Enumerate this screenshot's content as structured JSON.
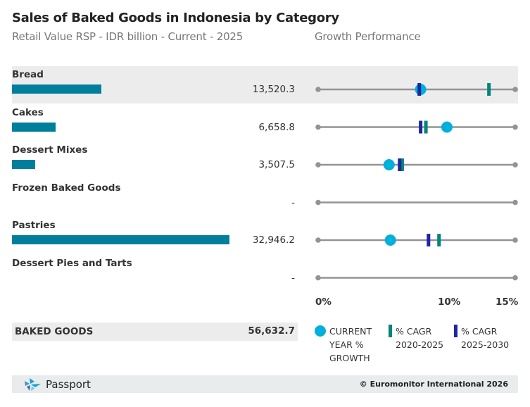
{
  "header": {
    "title": "Sales of Baked Goods in Indonesia by Category",
    "subtitle": "Retail Value RSP - IDR billion - Current - 2025",
    "growth_title": "Growth Performance"
  },
  "chart_data": {
    "type": "bar",
    "title": "Sales of Baked Goods in Indonesia by Category",
    "subtitle": "Retail Value RSP - IDR billion - Current - 2025",
    "unit": "IDR billion",
    "categories": [
      "Bread",
      "Cakes",
      "Dessert Mixes",
      "Frozen Baked Goods",
      "Pastries",
      "Dessert Pies and Tarts"
    ],
    "values": [
      13520.3,
      6658.8,
      3507.5,
      null,
      32946.2,
      null
    ],
    "value_labels": [
      "13,520.3",
      "6,658.8",
      "3,507.5",
      "-",
      "32,946.2",
      "-"
    ],
    "total": {
      "label": "BAKED GOODS",
      "value": 56632.7,
      "value_label": "56,632.7"
    },
    "growth": {
      "title": "Growth Performance",
      "xlim": [
        0,
        15
      ],
      "ticks": [
        0,
        10,
        15
      ],
      "tick_labels": [
        "0%",
        "10%",
        "15%"
      ],
      "series": [
        {
          "name": "CURRENT YEAR % GROWTH",
          "marker": "circle",
          "color": "#00b0dc",
          "values": [
            7.8,
            9.8,
            5.4,
            null,
            5.5,
            null
          ]
        },
        {
          "name": "% CAGR 2020-2025",
          "marker": "bar",
          "color": "#008578",
          "values": [
            13.0,
            8.2,
            6.4,
            null,
            9.2,
            null
          ]
        },
        {
          "name": "% CAGR 2025-2030",
          "marker": "bar",
          "color": "#1f26a0",
          "values": [
            7.7,
            7.8,
            6.2,
            null,
            8.4,
            null
          ]
        }
      ]
    }
  },
  "legend": {
    "current_line1": "CURRENT",
    "current_line2": "YEAR %",
    "current_line3": "GROWTH",
    "cagr1_line1": "% CAGR",
    "cagr1_line2": "2020-2025",
    "cagr2_line1": "% CAGR",
    "cagr2_line2": "2025-2030"
  },
  "footer": {
    "brand": "Passport",
    "copyright": "© Euromonitor International 2026"
  },
  "colors": {
    "bar": "#007f9c",
    "current": "#00b0dc",
    "cagr_past": "#008578",
    "cagr_future": "#1f26a0",
    "axis_line": "#949494"
  }
}
